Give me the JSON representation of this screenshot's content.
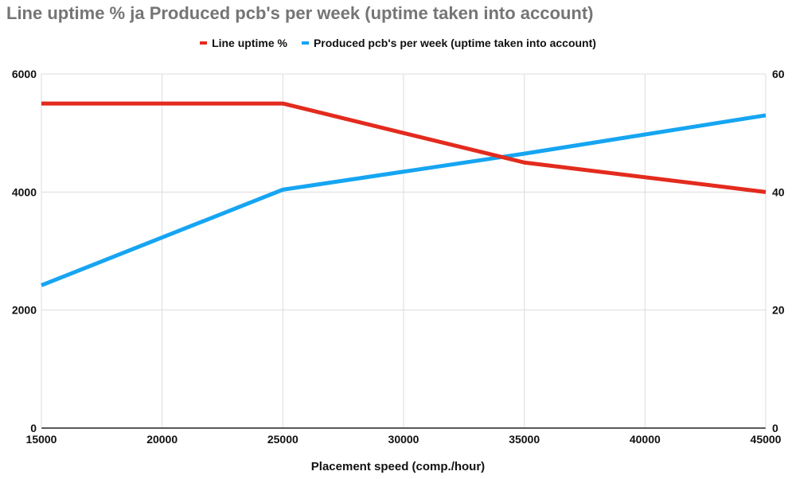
{
  "chart_data": {
    "type": "line",
    "title": "Line uptime % ja Produced pcb's per week (uptime taken into account)",
    "xlabel": "Placement speed (comp./hour)",
    "ylabel_left": "",
    "ylabel_right": "",
    "xlim": [
      15000,
      45000
    ],
    "ylim_left": [
      0,
      6000
    ],
    "ylim_right": [
      0,
      60
    ],
    "x_ticks": [
      "15000",
      "20000",
      "25000",
      "30000",
      "35000",
      "40000",
      "45000"
    ],
    "y_left_ticks": [
      "0",
      "2000",
      "4000",
      "6000"
    ],
    "y_right_ticks": [
      "0",
      "20",
      "40",
      "60"
    ],
    "grid": true,
    "legend_position": "top",
    "series": [
      {
        "name": "Line uptime %",
        "axis": "right",
        "color": "#e32b1e",
        "x": [
          15000,
          25000,
          35000,
          45000
        ],
        "values": [
          55,
          55,
          45,
          40
        ]
      },
      {
        "name": "Produced pcb's per week (uptime taken into account)",
        "axis": "left",
        "color": "#16a5f2",
        "x": [
          15000,
          25000,
          35000,
          45000
        ],
        "values": [
          2420,
          4040,
          4650,
          5300
        ]
      }
    ]
  }
}
